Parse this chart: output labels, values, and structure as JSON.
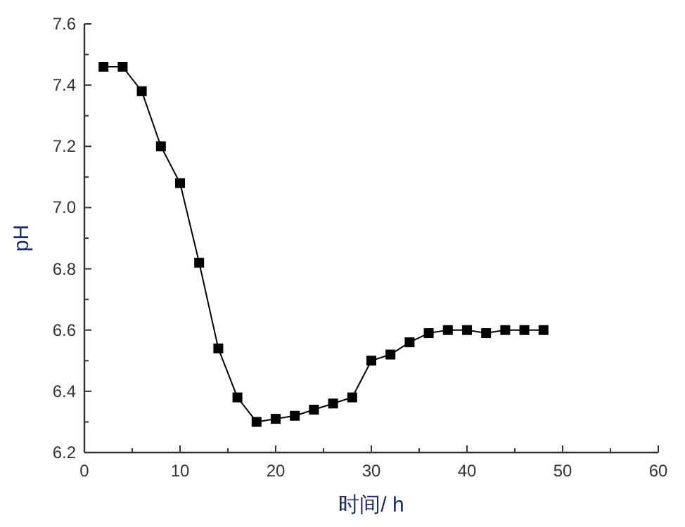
{
  "chart_data": {
    "type": "line",
    "xlabel": "时间/ h",
    "ylabel": "pH",
    "x": [
      2,
      4,
      6,
      8,
      10,
      12,
      14,
      16,
      18,
      20,
      22,
      24,
      26,
      28,
      30,
      32,
      34,
      36,
      38,
      40,
      42,
      44,
      46,
      48
    ],
    "series": [
      {
        "color": "#000000",
        "values": [
          7.46,
          7.46,
          7.38,
          7.2,
          7.08,
          6.82,
          6.54,
          6.38,
          6.3,
          6.31,
          6.32,
          6.34,
          6.36,
          6.38,
          6.5,
          6.52,
          6.56,
          6.59,
          6.6,
          6.6,
          6.59,
          6.6,
          6.6,
          6.6
        ]
      }
    ],
    "xlim": [
      0,
      60
    ],
    "xticks": [
      0,
      10,
      20,
      30,
      40,
      50,
      60
    ],
    "ylim": [
      6.2,
      7.6
    ],
    "yticks": [
      {
        "value": 6.2,
        "label": "6.2"
      },
      {
        "value": 6.4,
        "label": "6.4"
      },
      {
        "value": 6.6,
        "label": "6.6"
      },
      {
        "value": 6.8,
        "label": "6.8"
      },
      {
        "value": 7.0,
        "label": "7.0"
      },
      {
        "value": 7.2,
        "label": "7.2"
      },
      {
        "value": 7.4,
        "label": "7.4"
      },
      {
        "value": 7.6,
        "label": "7.6"
      }
    ],
    "marker": "square",
    "line_style": "solid"
  }
}
